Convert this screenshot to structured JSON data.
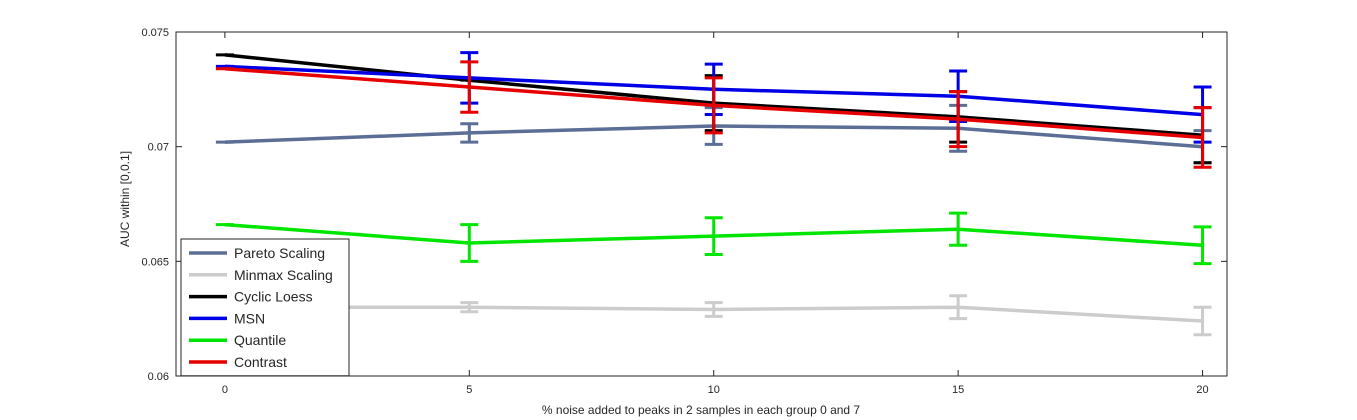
{
  "chart_data": {
    "type": "line",
    "xlabel": "% noise added to peaks in 2 samples in each group 0 and 7",
    "ylabel": "AUC within [0,0.1]",
    "xlim": [
      -1,
      20.5
    ],
    "ylim": [
      0.06,
      0.075
    ],
    "x": [
      0,
      5,
      10,
      15,
      20
    ],
    "xticks": [
      "0",
      "5",
      "10",
      "15",
      "20"
    ],
    "yticks": [
      "0.06",
      "0.065",
      "0.07",
      "0.075"
    ],
    "grid": false,
    "legend_position": "bottom-left",
    "series": [
      {
        "name": "Pareto Scaling",
        "color": "#5c6e95",
        "values": [
          0.0702,
          0.0706,
          0.0709,
          0.0708,
          0.07
        ],
        "err": [
          0.0,
          0.0004,
          0.0008,
          0.001,
          0.0007
        ]
      },
      {
        "name": "Minmax Scaling",
        "color": "#cccccc",
        "values": [
          0.063,
          0.063,
          0.0629,
          0.063,
          0.0624
        ],
        "err": [
          0.0,
          0.0002,
          0.0003,
          0.0005,
          0.0006
        ]
      },
      {
        "name": "Cyclic Loess",
        "color": "#000000",
        "values": [
          0.074,
          0.0729,
          0.0719,
          0.0713,
          0.0705
        ],
        "err": [
          0.0,
          0.0,
          0.0012,
          0.0011,
          0.0012
        ]
      },
      {
        "name": "MSN",
        "color": "#0000e6",
        "values": [
          0.0735,
          0.073,
          0.0725,
          0.0722,
          0.0714
        ],
        "err": [
          0.0,
          0.0011,
          0.0011,
          0.0011,
          0.0012
        ]
      },
      {
        "name": "Quantile",
        "color": "#00e600",
        "values": [
          0.0666,
          0.0658,
          0.0661,
          0.0664,
          0.0657
        ],
        "err": [
          0.0,
          0.0008,
          0.0008,
          0.0007,
          0.0008
        ]
      },
      {
        "name": "Contrast",
        "color": "#e60000",
        "values": [
          0.0734,
          0.0726,
          0.0718,
          0.0712,
          0.0704
        ],
        "err": [
          0.0,
          0.0011,
          0.0012,
          0.0012,
          0.0013
        ]
      }
    ]
  }
}
